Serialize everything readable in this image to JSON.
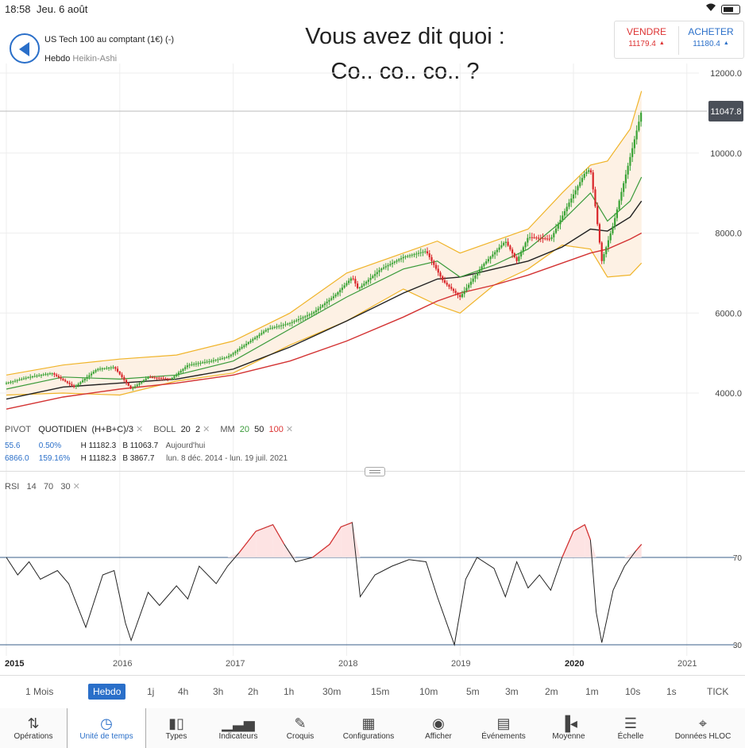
{
  "status": {
    "time": "18:58",
    "date": "Jeu. 6 août"
  },
  "header": {
    "instrument": "US Tech 100 au comptant (1€) (-)",
    "timeframe": "Hebdo",
    "chart_style": "Heikin-Ashi",
    "title_line1": "Vous avez dit quoi :",
    "title_line2": "Co.. co.. co..  ?"
  },
  "quote": {
    "sell_label": "VENDRE",
    "sell_price": "11179.4",
    "buy_label": "ACHETER",
    "buy_price": "11180.4",
    "sell_color": "#d33333",
    "buy_color": "#2a6fc9"
  },
  "price_axis": {
    "ticks": [
      "12000.0",
      "10000.0",
      "8000.0",
      "6000.0",
      "4000.0"
    ],
    "current": "11047.8"
  },
  "indicators": {
    "pivot": "PIVOT",
    "quotidien": "QUOTIDIEN",
    "formula": "(H+B+C)/3",
    "boll": "BOLL",
    "boll_p1": "20",
    "boll_p2": "2",
    "mm": "MM",
    "mm1": "20",
    "mm2": "50",
    "mm3": "100",
    "mm_colors": [
      "#3a9a3a",
      "#222222",
      "#d33333"
    ],
    "boll_color": "#f0b429",
    "row1": {
      "change": "55.6",
      "pct": "0.50%",
      "high": "H 11182.3",
      "low": "B 11063.7",
      "period": "Aujourd'hui"
    },
    "row2": {
      "change": "6866.0",
      "pct": "159.16%",
      "high": "H 11182.3",
      "low": "B 3867.7",
      "period": "lun. 8 déc. 2014 - lun. 19 juil. 2021"
    }
  },
  "rsi": {
    "label": "RSI",
    "p1": "14",
    "p2": "70",
    "p3": "30",
    "level_high": "70",
    "level_low": "30"
  },
  "x_axis": [
    "2015",
    "2016",
    "2017",
    "2018",
    "2019",
    "2020",
    "2021"
  ],
  "timeframes": [
    "1 Mois",
    "Hebdo",
    "1j",
    "4h",
    "3h",
    "2h",
    "1h",
    "30m",
    "15m",
    "10m",
    "5m",
    "3m",
    "2m",
    "1m",
    "10s",
    "1s",
    "TICK"
  ],
  "active_timeframe": "Hebdo",
  "toolbar": [
    {
      "label": "Opérations",
      "icon": "updown-arrows-icon"
    },
    {
      "label": "Unité de temps",
      "icon": "clock-icon"
    },
    {
      "label": "Types",
      "icon": "candles-icon"
    },
    {
      "label": "Indicateurs",
      "icon": "bar-indicator-icon"
    },
    {
      "label": "Croquis",
      "icon": "pencil-icon"
    },
    {
      "label": "Configurations",
      "icon": "layout-icon"
    },
    {
      "label": "Afficher",
      "icon": "eye-icon"
    },
    {
      "label": "Événements",
      "icon": "calendar-icon"
    },
    {
      "label": "Moyenne",
      "icon": "average-icon"
    },
    {
      "label": "Échelle",
      "icon": "scale-icon"
    },
    {
      "label": "Données HLOC",
      "icon": "crosshair-icon"
    }
  ],
  "chart_data": {
    "type": "candlestick",
    "x_range": [
      2015.0,
      2021.6
    ],
    "y_range": [
      3200,
      12400
    ],
    "price": [
      [
        2015.0,
        4250
      ],
      [
        2015.2,
        4400
      ],
      [
        2015.4,
        4500
      ],
      [
        2015.6,
        4150
      ],
      [
        2015.8,
        4600
      ],
      [
        2015.95,
        4650
      ],
      [
        2016.1,
        4100
      ],
      [
        2016.25,
        4400
      ],
      [
        2016.45,
        4350
      ],
      [
        2016.6,
        4700
      ],
      [
        2016.8,
        4800
      ],
      [
        2016.95,
        4900
      ],
      [
        2017.1,
        5200
      ],
      [
        2017.3,
        5600
      ],
      [
        2017.5,
        5750
      ],
      [
        2017.7,
        6000
      ],
      [
        2017.9,
        6450
      ],
      [
        2018.05,
        6900
      ],
      [
        2018.1,
        6600
      ],
      [
        2018.3,
        7100
      ],
      [
        2018.5,
        7400
      ],
      [
        2018.7,
        7550
      ],
      [
        2018.85,
        6800
      ],
      [
        2019.0,
        6400
      ],
      [
        2019.2,
        7200
      ],
      [
        2019.4,
        7800
      ],
      [
        2019.5,
        7300
      ],
      [
        2019.6,
        7900
      ],
      [
        2019.8,
        7850
      ],
      [
        2019.95,
        8700
      ],
      [
        2020.1,
        9500
      ],
      [
        2020.15,
        9600
      ],
      [
        2020.2,
        8500
      ],
      [
        2020.25,
        7300
      ],
      [
        2020.35,
        8200
      ],
      [
        2020.5,
        9900
      ],
      [
        2020.6,
        11050
      ]
    ],
    "boll_upper": [
      [
        2015.0,
        4450
      ],
      [
        2015.5,
        4700
      ],
      [
        2016.0,
        4850
      ],
      [
        2016.5,
        4950
      ],
      [
        2017.0,
        5300
      ],
      [
        2017.5,
        6000
      ],
      [
        2018.0,
        7000
      ],
      [
        2018.5,
        7500
      ],
      [
        2018.8,
        7800
      ],
      [
        2019.0,
        7500
      ],
      [
        2019.3,
        7800
      ],
      [
        2019.6,
        8100
      ],
      [
        2019.9,
        9000
      ],
      [
        2020.15,
        9700
      ],
      [
        2020.3,
        9800
      ],
      [
        2020.5,
        10600
      ],
      [
        2020.6,
        11550
      ]
    ],
    "boll_lower": [
      [
        2015.0,
        3950
      ],
      [
        2015.5,
        4000
      ],
      [
        2016.0,
        3950
      ],
      [
        2016.5,
        4300
      ],
      [
        2017.0,
        4500
      ],
      [
        2017.5,
        5200
      ],
      [
        2018.0,
        5800
      ],
      [
        2018.5,
        6600
      ],
      [
        2018.8,
        6200
      ],
      [
        2019.0,
        6000
      ],
      [
        2019.3,
        6700
      ],
      [
        2019.6,
        7100
      ],
      [
        2019.9,
        7700
      ],
      [
        2020.15,
        7600
      ],
      [
        2020.3,
        6900
      ],
      [
        2020.5,
        6950
      ],
      [
        2020.6,
        7250
      ]
    ],
    "mm20": [
      [
        2015.0,
        4100
      ],
      [
        2015.5,
        4400
      ],
      [
        2016.0,
        4350
      ],
      [
        2016.5,
        4450
      ],
      [
        2017.0,
        4800
      ],
      [
        2017.5,
        5600
      ],
      [
        2018.0,
        6400
      ],
      [
        2018.5,
        7100
      ],
      [
        2018.8,
        7300
      ],
      [
        2019.0,
        6900
      ],
      [
        2019.3,
        7200
      ],
      [
        2019.6,
        7600
      ],
      [
        2019.9,
        8300
      ],
      [
        2020.15,
        9000
      ],
      [
        2020.3,
        8300
      ],
      [
        2020.5,
        8800
      ],
      [
        2020.6,
        9400
      ]
    ],
    "mm50": [
      [
        2015.0,
        3850
      ],
      [
        2015.5,
        4150
      ],
      [
        2016.0,
        4250
      ],
      [
        2016.5,
        4350
      ],
      [
        2017.0,
        4600
      ],
      [
        2017.5,
        5150
      ],
      [
        2018.0,
        5800
      ],
      [
        2018.5,
        6500
      ],
      [
        2018.8,
        6850
      ],
      [
        2019.0,
        6900
      ],
      [
        2019.3,
        7100
      ],
      [
        2019.6,
        7300
      ],
      [
        2019.9,
        7650
      ],
      [
        2020.15,
        8100
      ],
      [
        2020.3,
        8050
      ],
      [
        2020.5,
        8400
      ],
      [
        2020.6,
        8800
      ]
    ],
    "mm100": [
      [
        2015.0,
        3600
      ],
      [
        2015.5,
        3900
      ],
      [
        2016.0,
        4100
      ],
      [
        2016.5,
        4250
      ],
      [
        2017.0,
        4450
      ],
      [
        2017.5,
        4800
      ],
      [
        2018.0,
        5300
      ],
      [
        2018.5,
        5900
      ],
      [
        2018.8,
        6300
      ],
      [
        2019.0,
        6500
      ],
      [
        2019.3,
        6700
      ],
      [
        2019.6,
        6950
      ],
      [
        2019.9,
        7250
      ],
      [
        2020.15,
        7500
      ],
      [
        2020.3,
        7600
      ],
      [
        2020.5,
        7850
      ],
      [
        2020.6,
        8000
      ]
    ],
    "rsi": [
      [
        2015.0,
        70
      ],
      [
        2015.1,
        62
      ],
      [
        2015.2,
        68
      ],
      [
        2015.3,
        60
      ],
      [
        2015.45,
        64
      ],
      [
        2015.55,
        58
      ],
      [
        2015.7,
        38
      ],
      [
        2015.85,
        62
      ],
      [
        2015.95,
        64
      ],
      [
        2016.05,
        40
      ],
      [
        2016.1,
        32
      ],
      [
        2016.25,
        54
      ],
      [
        2016.35,
        48
      ],
      [
        2016.5,
        57
      ],
      [
        2016.6,
        51
      ],
      [
        2016.7,
        66
      ],
      [
        2016.85,
        58
      ],
      [
        2016.95,
        66
      ],
      [
        2017.05,
        72
      ],
      [
        2017.2,
        82
      ],
      [
        2017.35,
        85
      ],
      [
        2017.45,
        76
      ],
      [
        2017.55,
        68
      ],
      [
        2017.7,
        70
      ],
      [
        2017.85,
        76
      ],
      [
        2017.95,
        84
      ],
      [
        2018.05,
        86
      ],
      [
        2018.12,
        52
      ],
      [
        2018.25,
        62
      ],
      [
        2018.4,
        66
      ],
      [
        2018.55,
        69
      ],
      [
        2018.7,
        68
      ],
      [
        2018.8,
        52
      ],
      [
        2018.95,
        30
      ],
      [
        2019.05,
        60
      ],
      [
        2019.15,
        70
      ],
      [
        2019.3,
        65
      ],
      [
        2019.4,
        52
      ],
      [
        2019.5,
        68
      ],
      [
        2019.6,
        56
      ],
      [
        2019.7,
        62
      ],
      [
        2019.8,
        55
      ],
      [
        2019.9,
        70
      ],
      [
        2020.0,
        82
      ],
      [
        2020.1,
        85
      ],
      [
        2020.15,
        78
      ],
      [
        2020.2,
        45
      ],
      [
        2020.25,
        31
      ],
      [
        2020.35,
        55
      ],
      [
        2020.45,
        66
      ],
      [
        2020.55,
        73
      ],
      [
        2020.6,
        76
      ]
    ]
  }
}
